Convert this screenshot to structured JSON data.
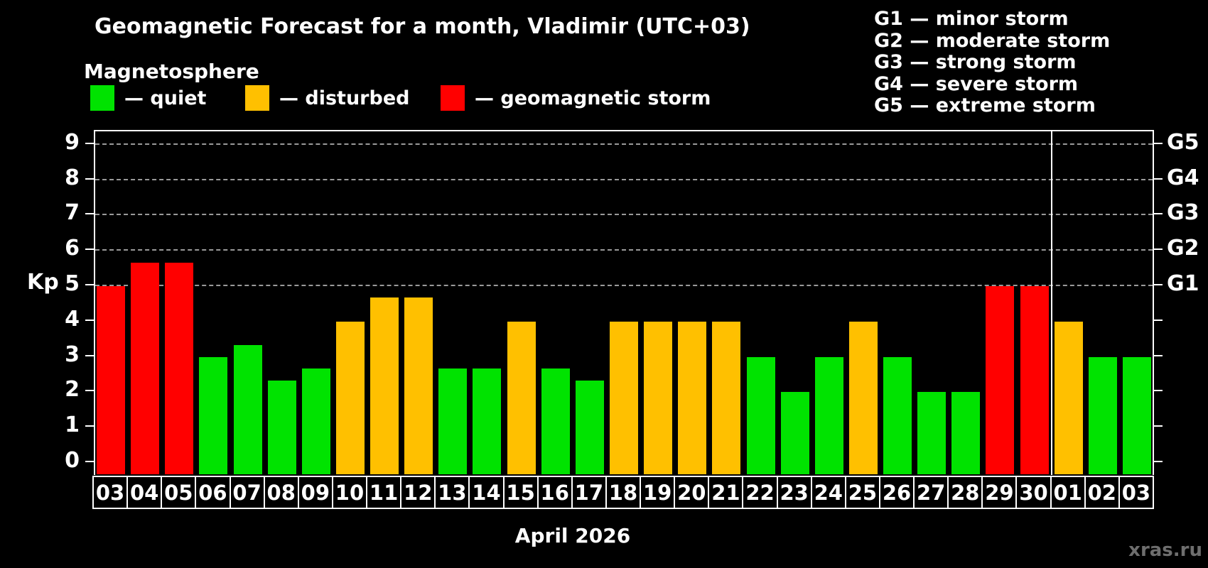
{
  "title": "Geomagnetic Forecast for a month, Vladimir (UTC+03)",
  "subtitle": "Magnetosphere",
  "legend": {
    "items": [
      {
        "status": "quiet",
        "label": "— quiet",
        "color": "#00e300",
        "x": 127
      },
      {
        "status": "disturbed",
        "label": "— disturbed",
        "color": "#ffc000",
        "x": 345
      },
      {
        "status": "storm",
        "label": "— geomagnetic storm",
        "color": "#ff0000",
        "x": 620
      }
    ]
  },
  "g_legend": [
    "G1 — minor storm",
    "G2 — moderate storm",
    "G3 — strong storm",
    "G4 — severe storm",
    "G5 — extreme storm"
  ],
  "axes": {
    "y_label": "Kp",
    "y_ticks": [
      0,
      1,
      2,
      3,
      4,
      5,
      6,
      7,
      8,
      9
    ],
    "right_storm_labels": [
      {
        "value": 5,
        "label": "G1"
      },
      {
        "value": 6,
        "label": "G2"
      },
      {
        "value": 7,
        "label": "G3"
      },
      {
        "value": 8,
        "label": "G4"
      },
      {
        "value": 9,
        "label": "G5"
      }
    ],
    "month_label": "April 2026"
  },
  "watermark": "xras.ru",
  "chart_data": {
    "type": "bar",
    "title": "Geomagnetic Forecast for a month, Vladimir (UTC+03)",
    "ylabel": "Kp",
    "ylim": [
      0,
      9
    ],
    "grid": "dashed horizontal at Kp 5-9 (G1-G5)",
    "gridlines_at": [
      5,
      6,
      7,
      8,
      9
    ],
    "legend_position": "top",
    "month_separator_after_index": 27,
    "categories": [
      "03",
      "04",
      "05",
      "06",
      "07",
      "08",
      "09",
      "10",
      "11",
      "12",
      "13",
      "14",
      "15",
      "16",
      "17",
      "18",
      "19",
      "20",
      "21",
      "22",
      "23",
      "24",
      "25",
      "26",
      "27",
      "28",
      "29",
      "30",
      "01",
      "02",
      "03"
    ],
    "values": [
      5.0,
      5.67,
      5.67,
      3.0,
      3.33,
      2.33,
      2.67,
      4.0,
      4.67,
      4.67,
      2.67,
      2.67,
      4.0,
      2.67,
      2.33,
      4.0,
      4.0,
      4.0,
      4.0,
      3.0,
      2.0,
      3.0,
      4.0,
      3.0,
      2.0,
      2.0,
      5.0,
      5.0,
      4.0,
      3.0,
      3.0
    ],
    "statuses": [
      "storm",
      "storm",
      "storm",
      "quiet",
      "quiet",
      "quiet",
      "quiet",
      "disturbed",
      "disturbed",
      "disturbed",
      "quiet",
      "quiet",
      "disturbed",
      "quiet",
      "quiet",
      "disturbed",
      "disturbed",
      "disturbed",
      "disturbed",
      "quiet",
      "quiet",
      "quiet",
      "disturbed",
      "quiet",
      "quiet",
      "quiet",
      "storm",
      "storm",
      "disturbed",
      "quiet",
      "quiet"
    ],
    "colors": {
      "quiet": "#00e300",
      "disturbed": "#ffc000",
      "storm": "#ff0000"
    }
  }
}
